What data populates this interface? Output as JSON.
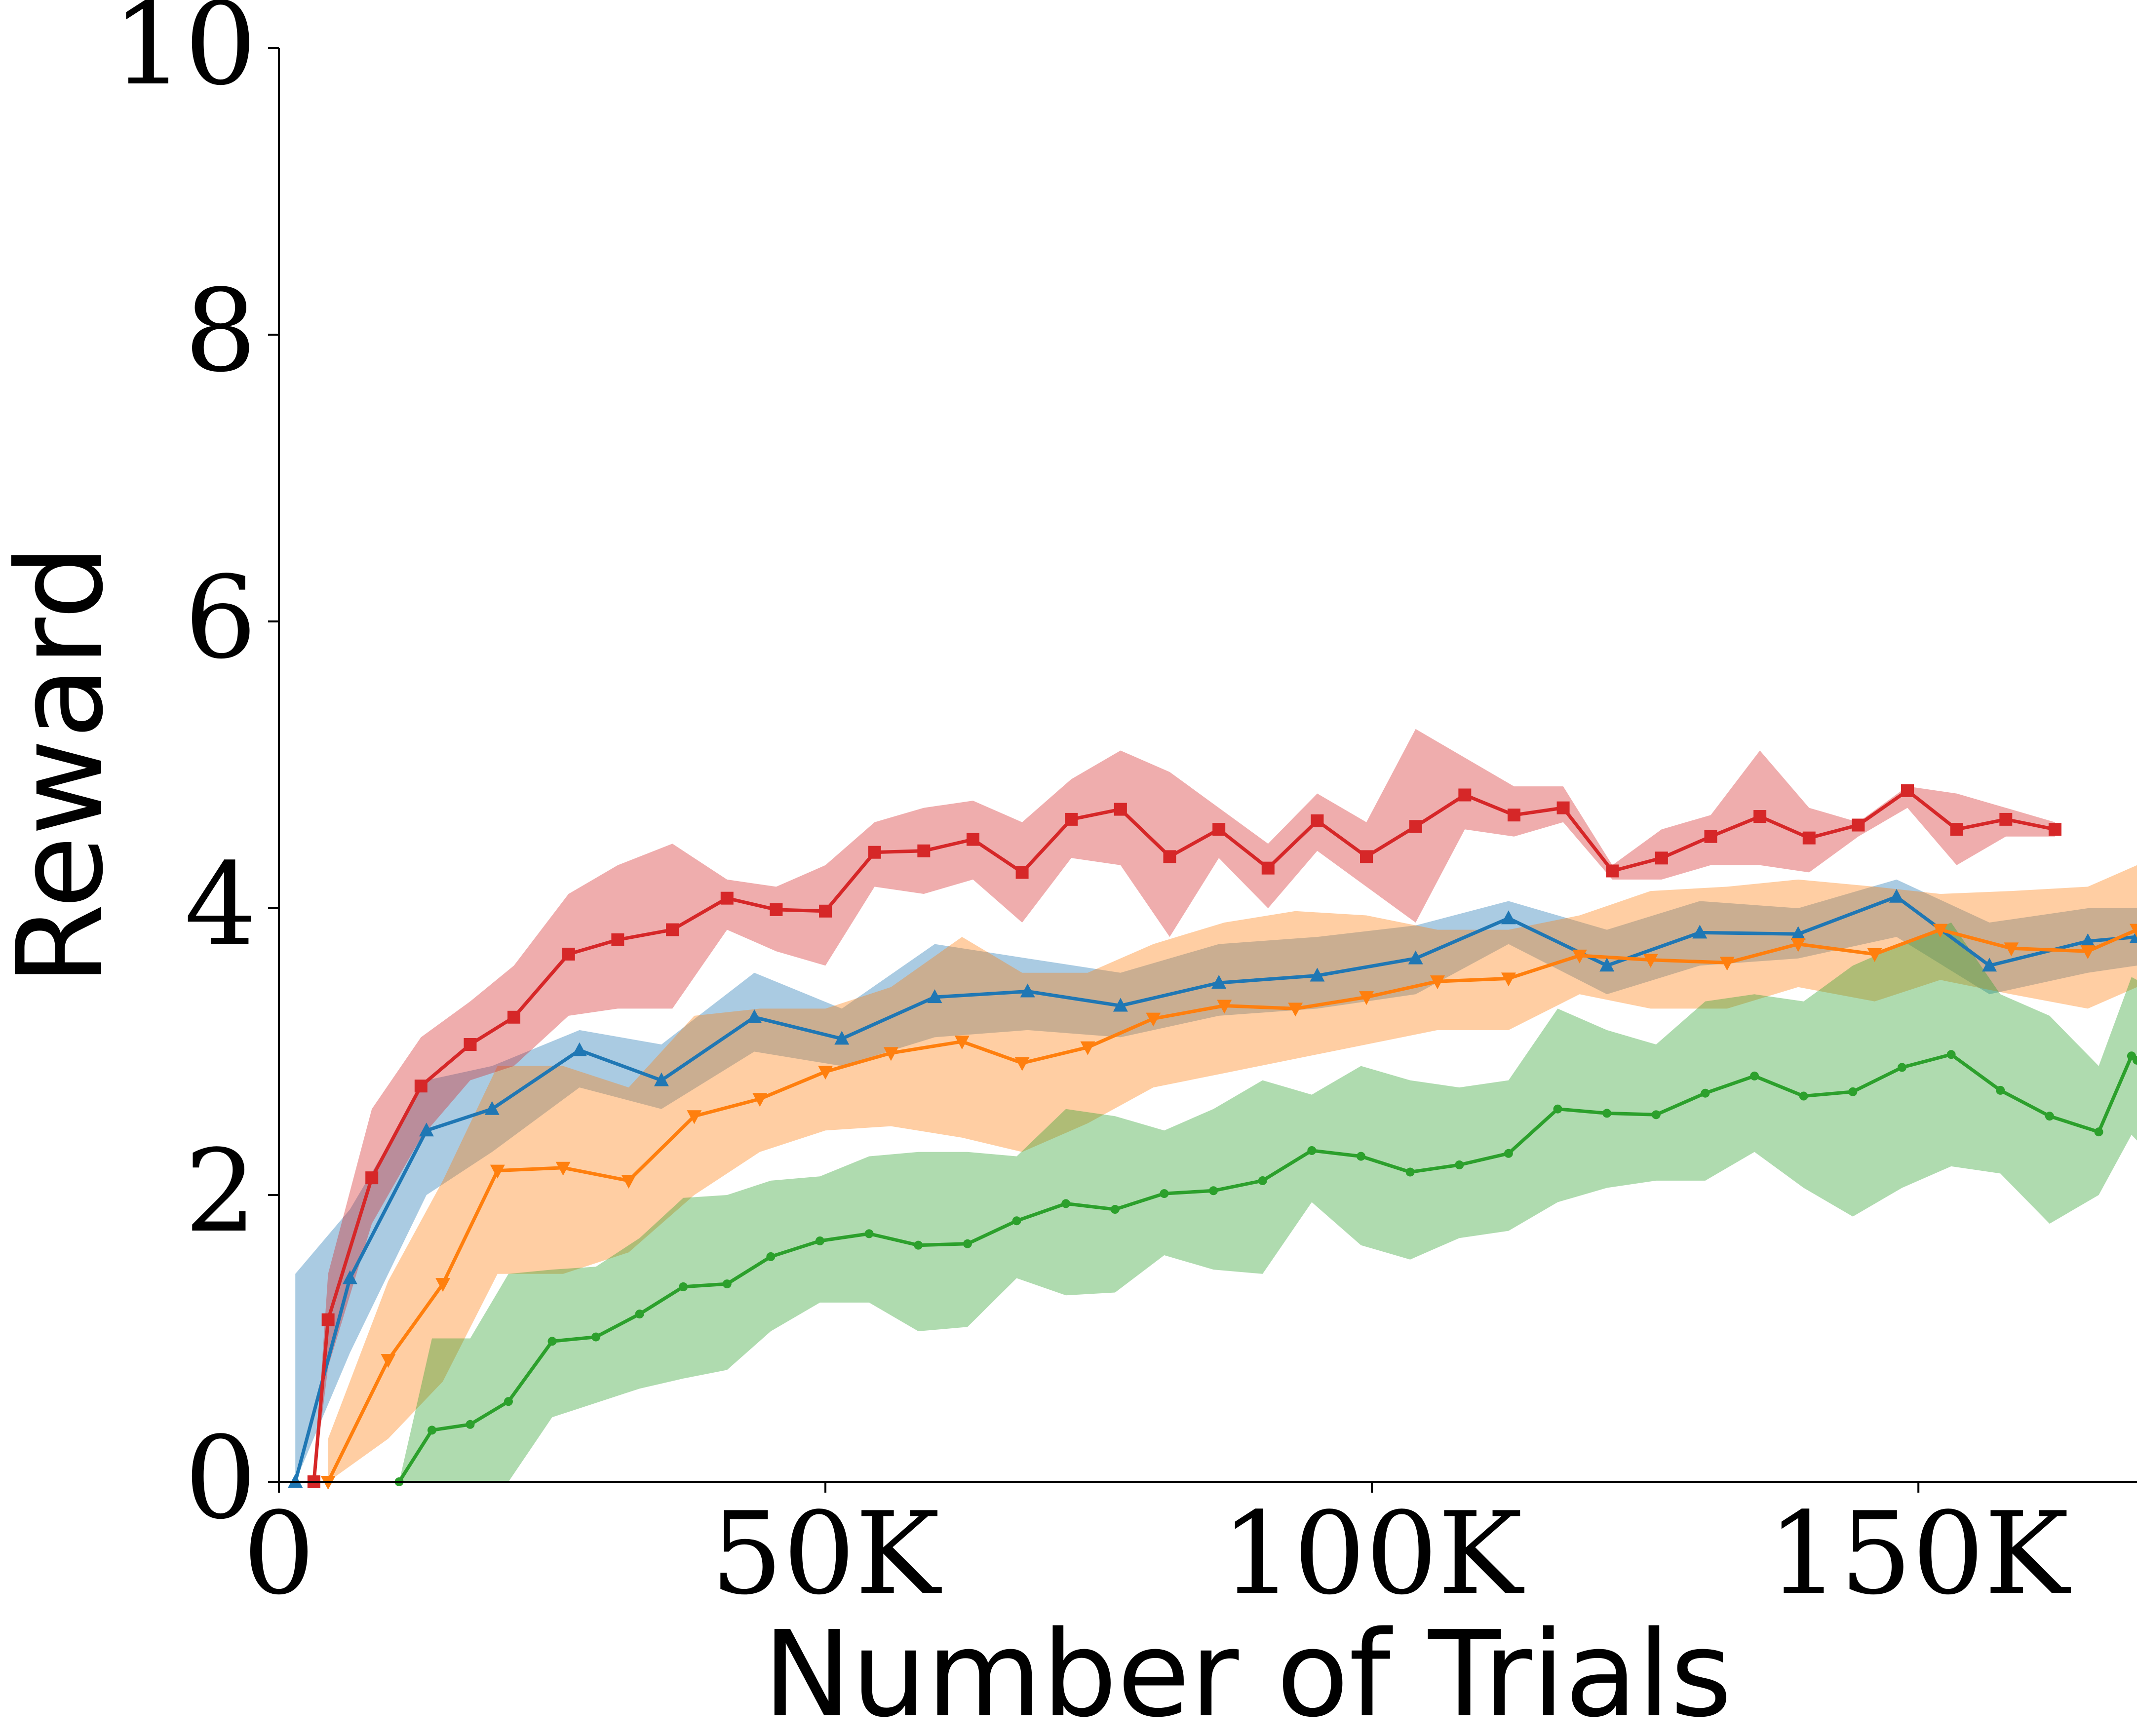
{
  "chart_data": {
    "type": "line",
    "title": "",
    "xlabel": "Number of Trials",
    "ylabel": "Reward",
    "xlim": [
      0,
      170000
    ],
    "ylim": [
      0,
      10
    ],
    "xticks": [
      0,
      50000,
      100000,
      150000
    ],
    "xtick_labels": [
      "0",
      "50K",
      "100K",
      "150K"
    ],
    "yticks": [
      0,
      2,
      4,
      6,
      8,
      10
    ],
    "ytick_labels": [
      "0",
      "2",
      "4",
      "6",
      "8",
      "10"
    ],
    "grid": false,
    "legend": "none",
    "series": [
      {
        "color": "#1f77b4",
        "marker": "triangle-up",
        "x": [
          1500,
          6500,
          13500,
          19500,
          27500,
          35000,
          43500,
          51500,
          60000,
          68500,
          77000,
          86000,
          95000,
          104000,
          112500,
          121500,
          130000,
          139000,
          148000,
          156500,
          165500,
          170000
        ],
        "y": [
          0.0,
          1.42,
          2.45,
          2.6,
          3.01,
          2.8,
          3.24,
          3.09,
          3.38,
          3.42,
          3.32,
          3.48,
          3.53,
          3.65,
          3.93,
          3.6,
          3.83,
          3.82,
          4.08,
          3.6,
          3.77,
          3.8
        ],
        "lower": [
          0.0,
          0.9,
          2.0,
          2.3,
          2.75,
          2.6,
          3.0,
          2.9,
          3.1,
          3.15,
          3.1,
          3.25,
          3.3,
          3.4,
          3.75,
          3.4,
          3.6,
          3.65,
          3.8,
          3.4,
          3.55,
          3.6
        ],
        "upper": [
          1.45,
          1.9,
          2.8,
          2.9,
          3.15,
          3.05,
          3.55,
          3.3,
          3.75,
          3.65,
          3.55,
          3.75,
          3.8,
          3.88,
          4.05,
          3.85,
          4.05,
          4.0,
          4.2,
          3.9,
          4.0,
          4.0
        ]
      },
      {
        "color": "#ff7f0e",
        "marker": "triangle-down",
        "x": [
          4500,
          10000,
          15000,
          20000,
          26000,
          32000,
          38000,
          44000,
          50000,
          56000,
          62500,
          68000,
          74000,
          80000,
          86500,
          93000,
          99500,
          106000,
          112500,
          119000,
          125500,
          132500,
          139000,
          146000,
          152000,
          158500,
          165500,
          170000
        ],
        "y": [
          0.0,
          0.85,
          1.38,
          2.17,
          2.19,
          2.1,
          2.55,
          2.67,
          2.86,
          2.99,
          3.07,
          2.92,
          3.03,
          3.23,
          3.32,
          3.3,
          3.38,
          3.49,
          3.51,
          3.67,
          3.64,
          3.62,
          3.75,
          3.68,
          3.85,
          3.72,
          3.7,
          3.85
        ],
        "lower": [
          0.0,
          0.3,
          0.7,
          1.45,
          1.45,
          1.6,
          2.0,
          2.3,
          2.45,
          2.48,
          2.4,
          2.3,
          2.5,
          2.75,
          2.85,
          2.95,
          3.05,
          3.15,
          3.15,
          3.4,
          3.3,
          3.3,
          3.45,
          3.35,
          3.5,
          3.4,
          3.3,
          3.45
        ],
        "upper": [
          0.3,
          1.4,
          2.1,
          2.9,
          2.9,
          2.75,
          3.25,
          3.3,
          3.3,
          3.45,
          3.8,
          3.55,
          3.55,
          3.75,
          3.9,
          3.98,
          3.95,
          3.85,
          3.85,
          3.95,
          4.12,
          4.15,
          4.2,
          4.15,
          4.1,
          4.12,
          4.15,
          4.3
        ]
      },
      {
        "color": "#2ca02c",
        "marker": "point",
        "x": [
          11000,
          14000,
          17500,
          21000,
          25000,
          29000,
          33000,
          37000,
          41000,
          45000,
          49500,
          54000,
          58500,
          63000,
          67500,
          72000,
          76500,
          81000,
          85500,
          90000,
          94500,
          99000,
          103500,
          108000,
          112500,
          117000,
          121500,
          126000,
          130500,
          135000,
          139500,
          144000,
          148500,
          153000,
          157500,
          162000,
          166500,
          169500,
          170000
        ],
        "y": [
          0.0,
          0.36,
          0.4,
          0.56,
          0.98,
          1.01,
          1.17,
          1.36,
          1.38,
          1.57,
          1.68,
          1.73,
          1.65,
          1.66,
          1.82,
          1.94,
          1.9,
          2.01,
          2.03,
          2.1,
          2.31,
          2.27,
          2.16,
          2.21,
          2.29,
          2.6,
          2.57,
          2.56,
          2.71,
          2.83,
          2.69,
          2.72,
          2.89,
          2.98,
          2.73,
          2.55,
          2.44,
          2.97,
          2.94
        ],
        "lower": [
          0.0,
          0.0,
          0.0,
          0.0,
          0.45,
          0.55,
          0.65,
          0.72,
          0.78,
          1.05,
          1.25,
          1.25,
          1.05,
          1.08,
          1.42,
          1.3,
          1.32,
          1.58,
          1.48,
          1.45,
          1.95,
          1.65,
          1.55,
          1.7,
          1.75,
          1.95,
          2.05,
          2.1,
          2.1,
          2.3,
          2.05,
          1.85,
          2.05,
          2.2,
          2.15,
          1.8,
          2.0,
          2.42,
          2.38
        ],
        "upper": [
          0.0,
          1.0,
          1.0,
          1.45,
          1.48,
          1.5,
          1.7,
          1.98,
          2.0,
          2.1,
          2.13,
          2.27,
          2.3,
          2.3,
          2.27,
          2.6,
          2.55,
          2.45,
          2.6,
          2.8,
          2.7,
          2.9,
          2.8,
          2.75,
          2.8,
          3.3,
          3.15,
          3.05,
          3.35,
          3.4,
          3.35,
          3.6,
          3.75,
          3.9,
          3.4,
          3.25,
          2.9,
          3.52,
          3.5
        ]
      },
      {
        "color": "#d62728",
        "marker": "square",
        "x": [
          3200,
          4500,
          8500,
          13000,
          17500,
          21500,
          26500,
          31000,
          36000,
          41000,
          45500,
          50000,
          54500,
          59000,
          63500,
          68000,
          72500,
          77000,
          81500,
          86000,
          90500,
          95000,
          99500,
          104000,
          108500,
          113000,
          117500,
          122000,
          126500,
          131000,
          135500,
          140000,
          144500,
          149000,
          153500,
          158000,
          162500
        ],
        "y": [
          0.0,
          1.13,
          2.12,
          2.76,
          3.05,
          3.24,
          3.68,
          3.78,
          3.85,
          4.07,
          3.99,
          3.98,
          4.39,
          4.4,
          4.48,
          4.25,
          4.62,
          4.69,
          4.36,
          4.55,
          4.28,
          4.61,
          4.36,
          4.57,
          4.79,
          4.65,
          4.7,
          4.26,
          4.35,
          4.5,
          4.64,
          4.49,
          4.58,
          4.82,
          4.55,
          4.62,
          4.55
        ],
        "lower": [
          0.0,
          0.8,
          1.8,
          2.4,
          2.8,
          2.9,
          3.25,
          3.3,
          3.3,
          3.85,
          3.7,
          3.6,
          4.15,
          4.1,
          4.2,
          3.9,
          4.35,
          4.3,
          3.8,
          4.35,
          4.0,
          4.4,
          4.15,
          3.9,
          4.55,
          4.5,
          4.6,
          4.2,
          4.2,
          4.3,
          4.3,
          4.25,
          4.5,
          4.7,
          4.3,
          4.5,
          4.5
        ],
        "upper": [
          0.0,
          1.45,
          2.6,
          3.1,
          3.35,
          3.6,
          4.1,
          4.3,
          4.45,
          4.2,
          4.15,
          4.3,
          4.6,
          4.7,
          4.75,
          4.6,
          4.9,
          5.1,
          4.95,
          4.7,
          4.45,
          4.8,
          4.6,
          5.25,
          5.05,
          4.85,
          4.85,
          4.3,
          4.55,
          4.65,
          5.1,
          4.7,
          4.6,
          4.85,
          4.8,
          4.7,
          4.6
        ]
      }
    ]
  }
}
